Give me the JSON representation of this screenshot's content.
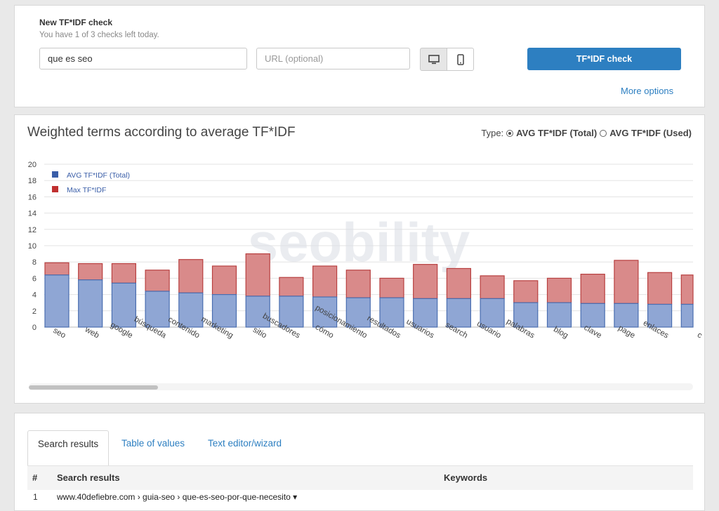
{
  "check": {
    "title": "New TF*IDF check",
    "subtitle": "You have 1 of 3 checks left today.",
    "keyword_value": "que es seo",
    "url_placeholder": "URL (optional)",
    "button_label": "TF*IDF check",
    "more_options": "More options",
    "devices": [
      "desktop-icon",
      "mobile-icon"
    ]
  },
  "chart_panel": {
    "title": "Weighted terms according to average TF*IDF",
    "type_label": "Type:",
    "type_options": [
      "AVG TF*IDF (Total)",
      "AVG TF*IDF (Used)"
    ],
    "type_selected": "AVG TF*IDF (Total)",
    "watermark": "seobility"
  },
  "chart_data": {
    "type": "bar",
    "stacked": true,
    "ylim": [
      0,
      20
    ],
    "yticks": [
      0,
      2,
      4,
      6,
      8,
      10,
      12,
      14,
      16,
      18,
      20
    ],
    "grid": true,
    "legend_position": "top-left",
    "categories": [
      "seo",
      "web",
      "google",
      "búsqueda",
      "contenido",
      "marketing",
      "sitio",
      "buscadores",
      "cómo",
      "posicionamiento",
      "resultados",
      "usuarios",
      "search",
      "usuario",
      "palabras",
      "blog",
      "clave",
      "page",
      "enlaces",
      "c"
    ],
    "series": [
      {
        "name": "AVG TF*IDF (Total)",
        "color": "#8fa6d4",
        "stroke": "#4a6eb0",
        "values": [
          6.4,
          5.8,
          5.4,
          4.4,
          4.2,
          4.0,
          3.8,
          3.8,
          3.7,
          3.6,
          3.6,
          3.5,
          3.5,
          3.5,
          3.0,
          3.0,
          2.9,
          2.9,
          2.8,
          2.8
        ]
      },
      {
        "name": "Max TF*IDF",
        "color": "#d98a8a",
        "stroke": "#b84040",
        "values": [
          7.9,
          7.8,
          7.8,
          7.0,
          8.3,
          7.5,
          9.0,
          6.1,
          7.5,
          7.0,
          6.0,
          7.7,
          7.2,
          6.3,
          5.7,
          6.0,
          6.5,
          8.2,
          6.7,
          6.4
        ]
      }
    ]
  },
  "results": {
    "tabs": [
      "Search results",
      "Table of values",
      "Text editor/wizard"
    ],
    "active_tab": "Search results",
    "columns": [
      "#",
      "Search results",
      "Keywords"
    ],
    "rows": [
      {
        "index": "1",
        "text": "www.40defiebre.com › guia-seo › que-es-seo-por-que-necesito ▾"
      }
    ]
  }
}
